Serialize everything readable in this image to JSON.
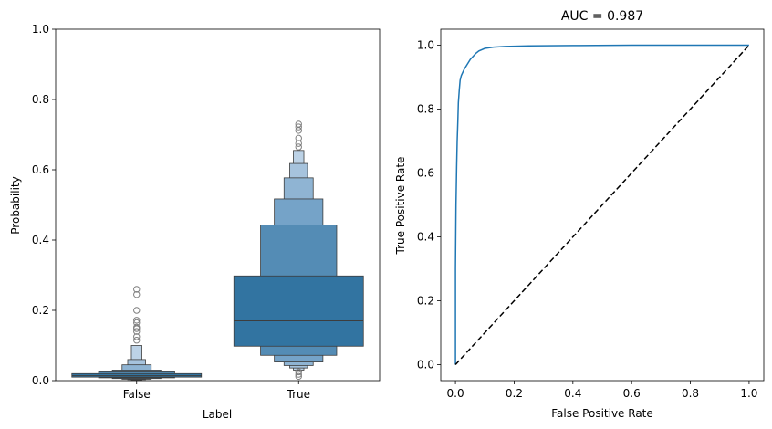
{
  "chart_data": [
    {
      "type": "boxen",
      "title": "",
      "xlabel": "Label",
      "ylabel": "Probability",
      "ylim": [
        0,
        1
      ],
      "yticks": [
        "0.0",
        "0.2",
        "0.4",
        "0.6",
        "0.8",
        "1.0"
      ],
      "categories": [
        "False",
        "True"
      ],
      "color": "#3274a1",
      "boxes": [
        {
          "category": "False",
          "median": 0.014,
          "levels": [
            {
              "lo": 0.01,
              "hi": 0.02
            },
            {
              "lo": 0.008,
              "hi": 0.025
            },
            {
              "lo": 0.006,
              "hi": 0.03
            },
            {
              "lo": 0.004,
              "hi": 0.045
            },
            {
              "lo": 0.003,
              "hi": 0.06
            },
            {
              "lo": 0.002,
              "hi": 0.1
            }
          ],
          "outliers": [
            0.26,
            0.245,
            0.2,
            0.172,
            0.165,
            0.152,
            0.148,
            0.14,
            0.125,
            0.115
          ]
        },
        {
          "category": "True",
          "median": 0.17,
          "levels": [
            {
              "lo": 0.098,
              "hi": 0.298
            },
            {
              "lo": 0.072,
              "hi": 0.443
            },
            {
              "lo": 0.053,
              "hi": 0.517
            },
            {
              "lo": 0.043,
              "hi": 0.577
            },
            {
              "lo": 0.036,
              "hi": 0.618
            },
            {
              "lo": 0.03,
              "hi": 0.655
            }
          ],
          "outliers": [
            0.73,
            0.722,
            0.712,
            0.69,
            0.675,
            0.665,
            0.025,
            0.018,
            0.012
          ]
        }
      ]
    },
    {
      "type": "line",
      "title": "AUC = 0.987",
      "xlabel": "False Positive Rate",
      "ylabel": "True Positive Rate",
      "xlim": [
        -0.05,
        1.05
      ],
      "ylim": [
        -0.05,
        1.05
      ],
      "xticks": [
        "0.0",
        "0.2",
        "0.4",
        "0.6",
        "0.8",
        "1.0"
      ],
      "yticks": [
        "0.0",
        "0.2",
        "0.4",
        "0.6",
        "0.8",
        "1.0"
      ],
      "series": [
        {
          "color": "#1f77b4",
          "style": "solid",
          "x": [
            0.0,
            0.0,
            0.002,
            0.004,
            0.006,
            0.008,
            0.01,
            0.013,
            0.016,
            0.02,
            0.025,
            0.03,
            0.04,
            0.05,
            0.06,
            0.07,
            0.08,
            0.1,
            0.13,
            0.17,
            0.25,
            0.4,
            0.6,
            0.8,
            1.0
          ],
          "y": [
            0.0,
            0.3,
            0.5,
            0.62,
            0.7,
            0.76,
            0.82,
            0.86,
            0.89,
            0.905,
            0.915,
            0.925,
            0.94,
            0.955,
            0.965,
            0.975,
            0.982,
            0.99,
            0.994,
            0.996,
            0.998,
            0.999,
            1.0,
            1.0,
            1.0
          ]
        },
        {
          "color": "#000000",
          "style": "dashed",
          "x": [
            0,
            1
          ],
          "y": [
            0,
            1
          ]
        }
      ]
    }
  ]
}
